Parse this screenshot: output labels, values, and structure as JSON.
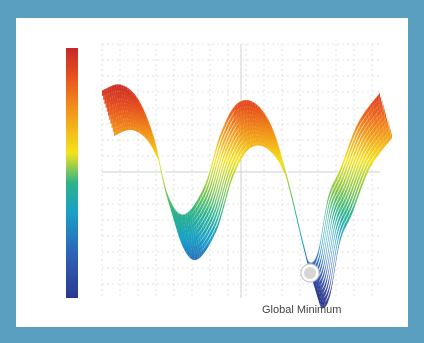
{
  "annotation": {
    "label": "Global Minimum"
  },
  "colors": {
    "frame": "#5a9fc0",
    "panel": "#ffffff",
    "grid": "#e2e2e2",
    "colormap": [
      "#2b3990",
      "#2e63b8",
      "#1aa0c8",
      "#2bb38a",
      "#8cc63f",
      "#f5e31c",
      "#f29a1b",
      "#e8541e",
      "#c62828"
    ]
  }
}
